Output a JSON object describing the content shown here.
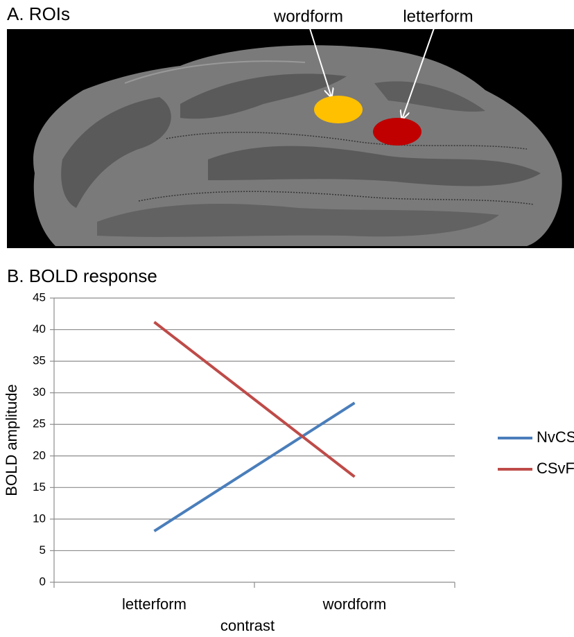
{
  "panel_a": {
    "title": "A. ROIs",
    "rois": [
      {
        "label": "wordform",
        "color": "#ffc000"
      },
      {
        "label": "letterform",
        "color": "#c00000"
      }
    ]
  },
  "chart_data": {
    "type": "line",
    "title": "B. BOLD response",
    "categories": [
      "letterform",
      "wordform"
    ],
    "x_label": "contrast",
    "y_label": "BOLD amplitude",
    "series": [
      {
        "name": "NvCS",
        "color": "#4a7ebb",
        "values": [
          8.1,
          28.4
        ]
      },
      {
        "name": "CSvFF",
        "color": "#be4b48",
        "values": [
          41.2,
          16.7
        ]
      }
    ],
    "ylim": [
      0,
      45
    ],
    "yticks": [
      0,
      5,
      10,
      15,
      20,
      25,
      30,
      35,
      40,
      45
    ],
    "grid": true,
    "legend": "right"
  }
}
